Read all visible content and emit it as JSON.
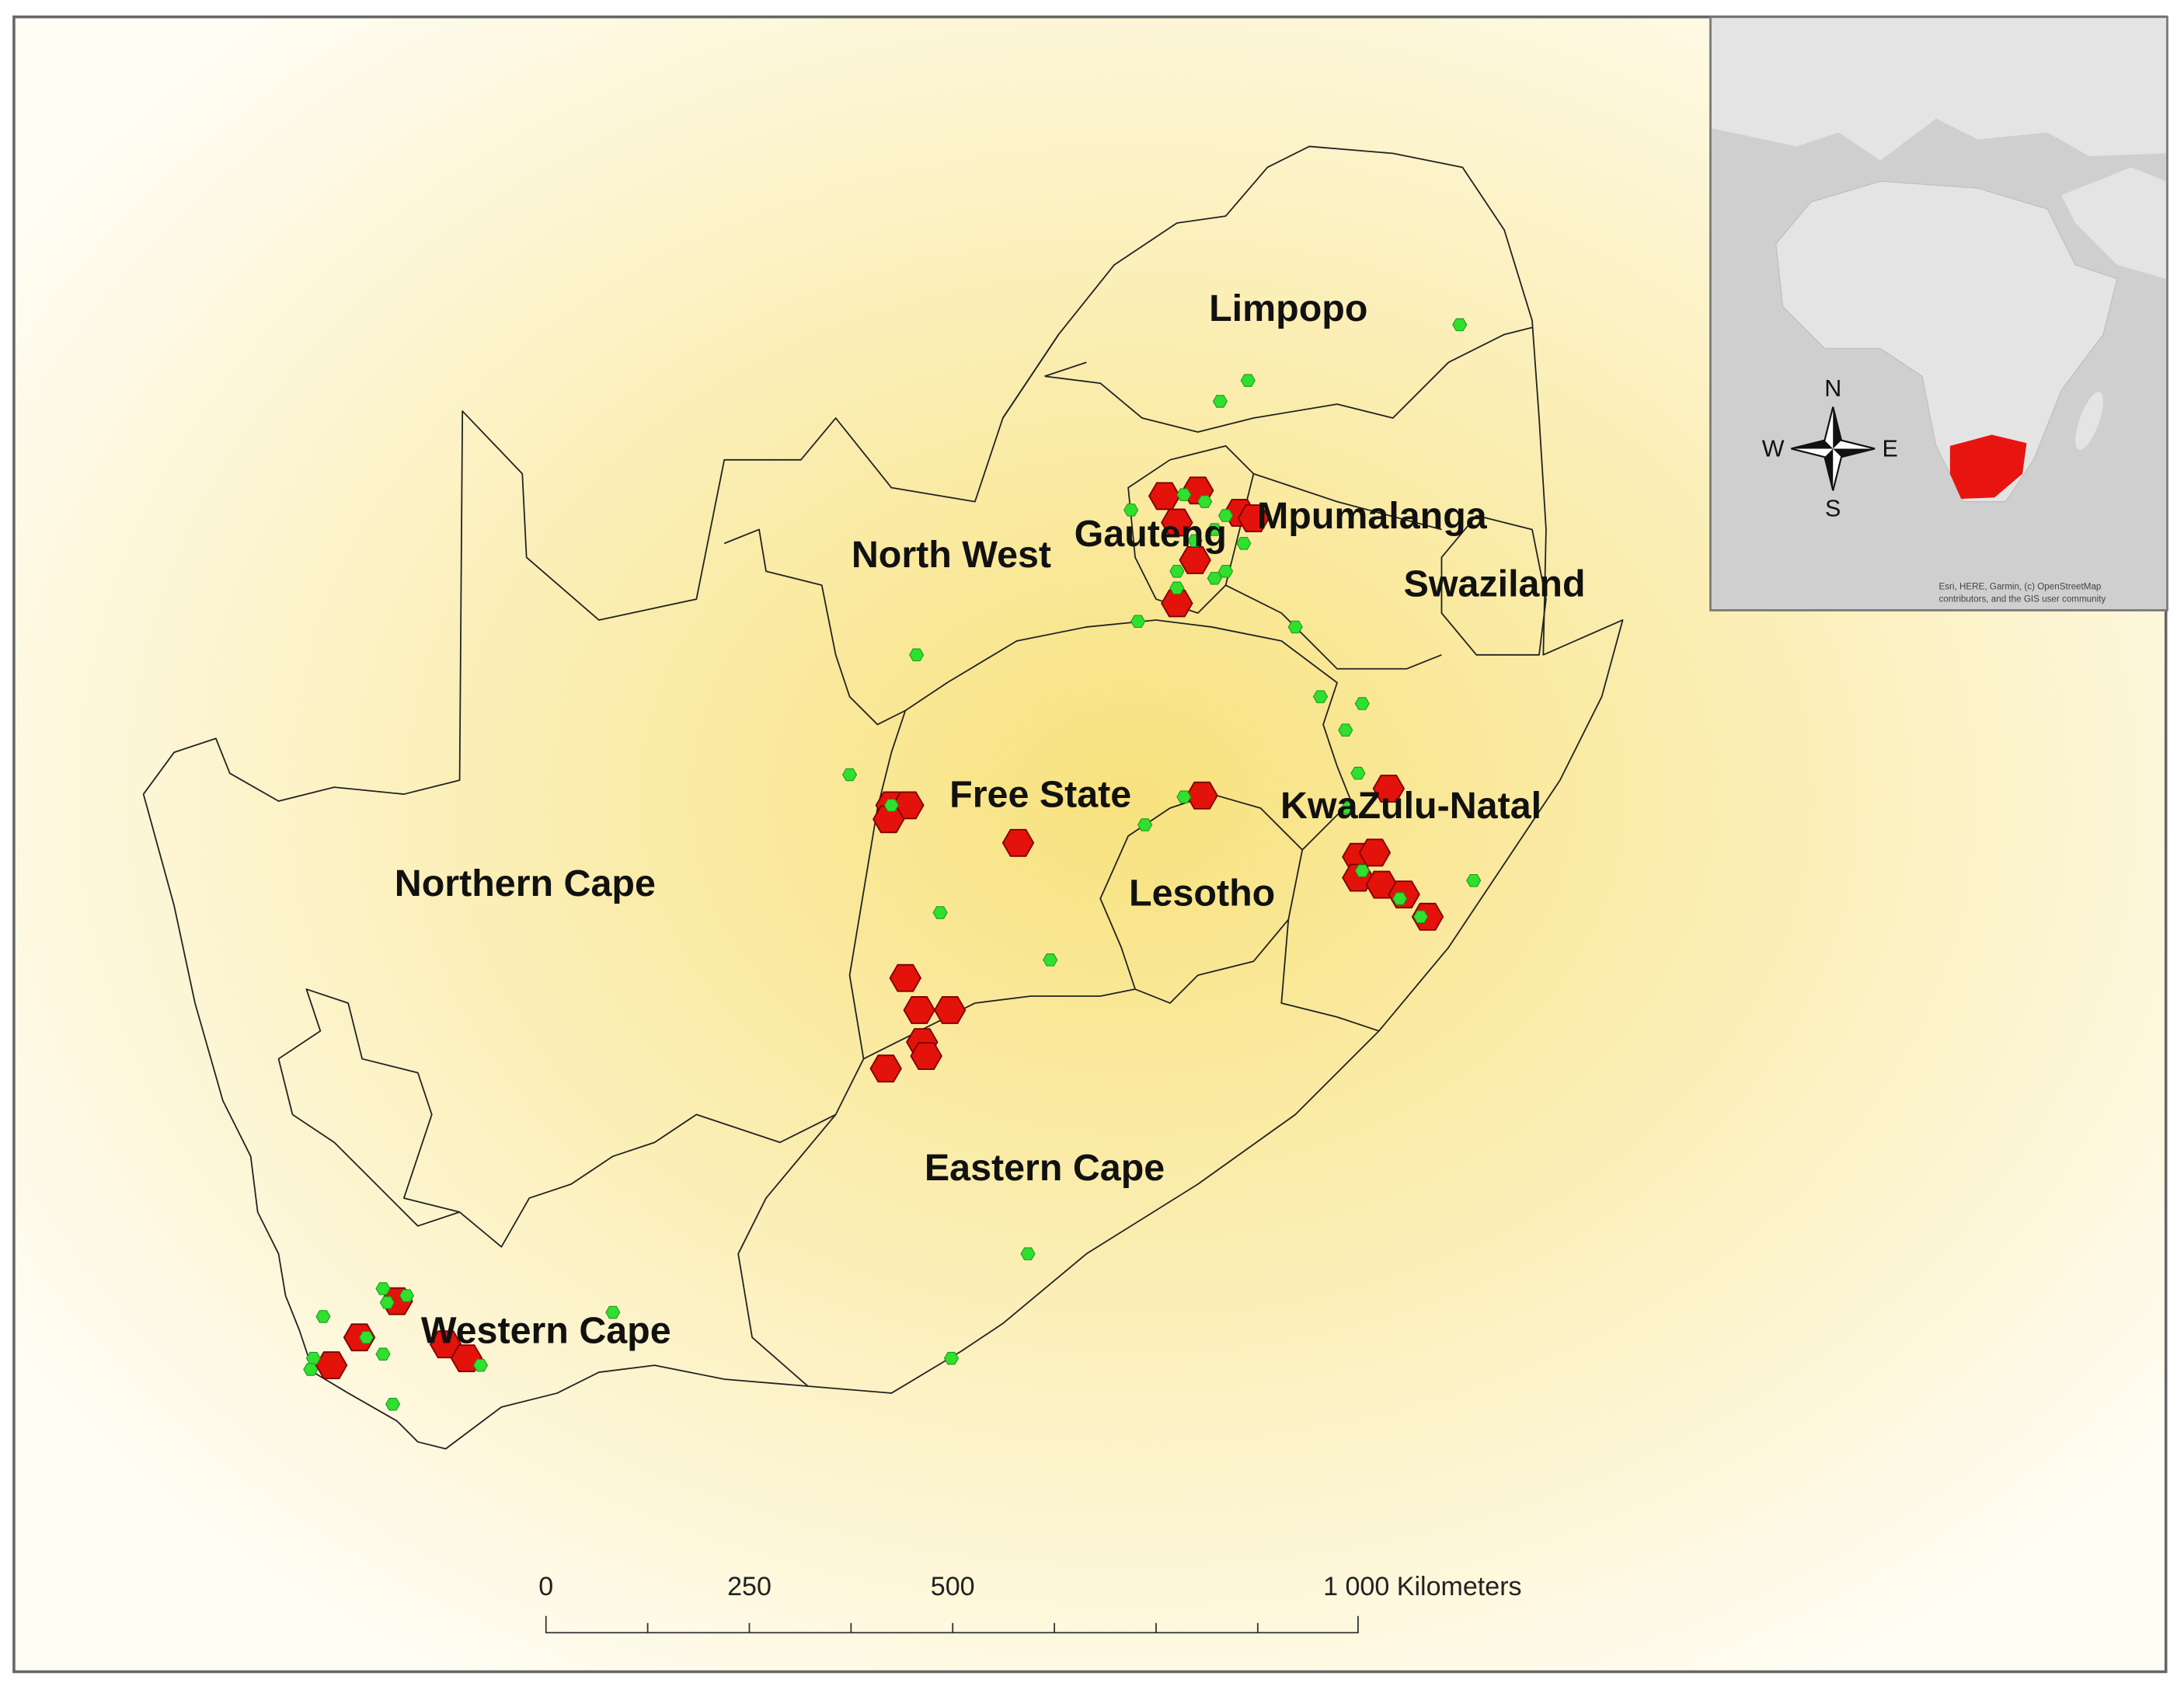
{
  "map": {
    "regions": [
      {
        "label": "Limpopo"
      },
      {
        "label": "North West"
      },
      {
        "label": "Gauteng"
      },
      {
        "label": "Mpumalanga"
      },
      {
        "label": "Swaziland"
      },
      {
        "label": "Free State"
      },
      {
        "label": "KwaZulu-Natal"
      },
      {
        "label": "Lesotho"
      },
      {
        "label": "Northern Cape"
      },
      {
        "label": "Eastern Cape"
      },
      {
        "label": "Western Cape"
      }
    ],
    "scale_bar": {
      "labels": [
        "0",
        "250",
        "500",
        "1 000 Kilometers"
      ]
    },
    "inset": {
      "compass": {
        "north": "N",
        "south": "S",
        "east": "E",
        "west": "W"
      },
      "attribution": [
        "Esri, HERE, Garmin, (c) OpenStreetMap",
        "contributors, and the GIS user community"
      ]
    }
  }
}
